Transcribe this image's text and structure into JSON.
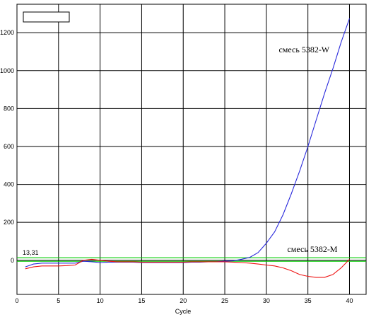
{
  "chart_data": {
    "type": "line",
    "title": "",
    "xlabel": "Cycle",
    "ylabel": "",
    "xlim": [
      0,
      42
    ],
    "ylim": [
      -180,
      1350
    ],
    "x_ticks": [
      0,
      5,
      10,
      15,
      20,
      25,
      30,
      35,
      40
    ],
    "y_ticks": [
      0,
      200,
      400,
      600,
      800,
      1000,
      1200
    ],
    "grid": true,
    "threshold": {
      "value": 13.31,
      "label": "13,31",
      "color": "#00cc00"
    },
    "series": [
      {
        "name": "смесь 5382-W",
        "color": "#2a2adc",
        "x": [
          1,
          2,
          3,
          4,
          5,
          6,
          7,
          8,
          9,
          10,
          11,
          12,
          13,
          14,
          15,
          16,
          17,
          18,
          19,
          20,
          21,
          22,
          23,
          24,
          25,
          26,
          27,
          28,
          29,
          30,
          31,
          32,
          33,
          34,
          35,
          36,
          37,
          38,
          39,
          40
        ],
        "y": [
          -35,
          -20,
          -15,
          -15,
          -15,
          -15,
          -15,
          -5,
          -8,
          -12,
          -10,
          -10,
          -10,
          -10,
          -12,
          -12,
          -12,
          -12,
          -12,
          -12,
          -10,
          -10,
          -8,
          -8,
          -5,
          -3,
          5,
          15,
          40,
          90,
          150,
          240,
          350,
          470,
          600,
          740,
          880,
          1010,
          1150,
          1275
        ]
      },
      {
        "name": "смесь 5382-M",
        "color": "#ee1111",
        "x": [
          1,
          2,
          3,
          4,
          5,
          6,
          7,
          8,
          9,
          10,
          11,
          12,
          13,
          14,
          15,
          16,
          17,
          18,
          19,
          20,
          21,
          22,
          23,
          24,
          25,
          26,
          27,
          28,
          29,
          30,
          31,
          32,
          33,
          34,
          35,
          36,
          37,
          38,
          39,
          40
        ],
        "y": [
          -45,
          -35,
          -30,
          -30,
          -30,
          -28,
          -25,
          0,
          5,
          0,
          -5,
          -8,
          -8,
          -8,
          -10,
          -10,
          -10,
          -10,
          -10,
          -10,
          -8,
          -8,
          -8,
          -8,
          -8,
          -10,
          -12,
          -15,
          -20,
          -25,
          -30,
          -40,
          -55,
          -75,
          -85,
          -90,
          -90,
          -75,
          -40,
          5
        ]
      }
    ],
    "annotations": [
      {
        "text": "смесь 5382-W",
        "series": 0
      },
      {
        "text": "смесь 5382-M",
        "series": 1
      }
    ]
  }
}
